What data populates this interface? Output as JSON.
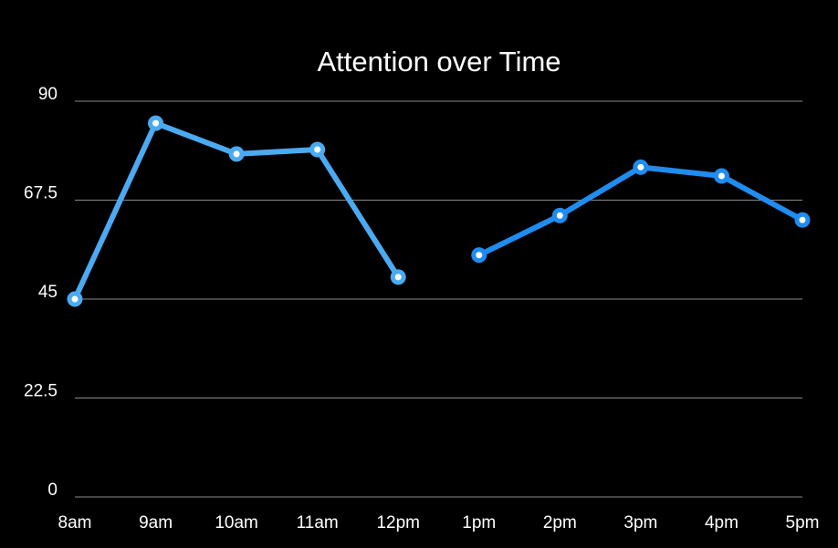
{
  "chart_data": {
    "type": "line",
    "title": "Attention over Time",
    "xlabel": "",
    "ylabel": "",
    "ylim": [
      0,
      90
    ],
    "yticks": [
      0,
      22.5,
      45,
      67.5,
      90
    ],
    "ytick_labels": [
      "0",
      "22.5",
      "45",
      "67.5",
      "90"
    ],
    "categories": [
      "8am",
      "9am",
      "10am",
      "11am",
      "12pm",
      "1pm",
      "2pm",
      "3pm",
      "4pm",
      "5pm"
    ],
    "grid": true,
    "legend": "none",
    "series": [
      {
        "color": "#4aaaf2",
        "values": [
          45,
          85,
          78,
          79,
          50,
          null,
          null,
          null,
          null,
          null
        ]
      },
      {
        "color": "#1f8cf0",
        "values": [
          null,
          null,
          null,
          null,
          null,
          55,
          64,
          75,
          73,
          63
        ]
      }
    ]
  }
}
